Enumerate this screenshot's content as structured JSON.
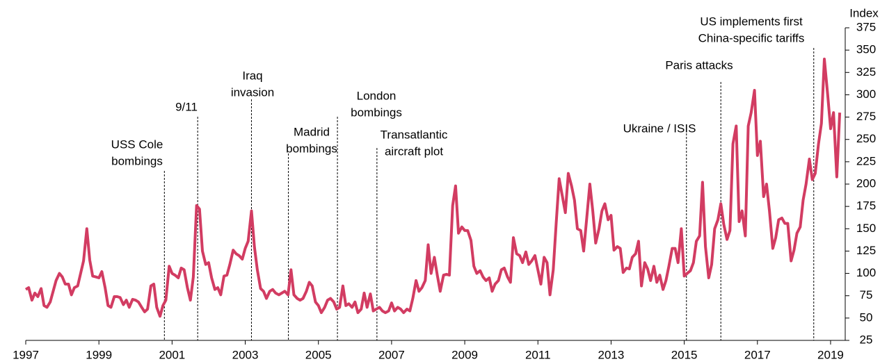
{
  "chart_data": {
    "type": "line",
    "y_axis_label": "Index",
    "color": "#d23c62",
    "xlim": [
      1997,
      2019.4
    ],
    "xticks": [
      1997,
      1999,
      2001,
      2003,
      2005,
      2007,
      2009,
      2011,
      2013,
      2015,
      2017,
      2019
    ],
    "ylim": [
      25,
      375
    ],
    "yticks": [
      25,
      50,
      75,
      100,
      125,
      150,
      175,
      200,
      225,
      250,
      275,
      300,
      325,
      350,
      375
    ],
    "annotations": [
      {
        "lines": [
          "USS Cole",
          "bombings"
        ],
        "x": 2000.79
      },
      {
        "lines": [
          "9/11"
        ],
        "x": 2001.7
      },
      {
        "lines": [
          "Iraq",
          "invasion"
        ],
        "x": 2003.17
      },
      {
        "lines": [
          "Madrid",
          "bombings"
        ],
        "x": 2004.18
      },
      {
        "lines": [
          "London",
          "bombings"
        ],
        "x": 2005.52
      },
      {
        "lines": [
          "Transatlantic",
          "aircraft plot"
        ],
        "x": 2006.6
      },
      {
        "lines": [
          "Ukraine / ISIS"
        ],
        "x": 2015.06
      },
      {
        "lines": [
          "Paris attacks"
        ],
        "x": 2016.0
      },
      {
        "lines": [
          "US implements first",
          "China-specific tariffs"
        ],
        "x": 2018.54
      }
    ],
    "x": [
      1997,
      1997.08,
      1997.17,
      1997.25,
      1997.33,
      1997.42,
      1997.5,
      1997.58,
      1997.67,
      1997.75,
      1997.83,
      1997.92,
      1998,
      1998.08,
      1998.17,
      1998.25,
      1998.33,
      1998.42,
      1998.5,
      1998.58,
      1998.67,
      1998.75,
      1998.83,
      1998.92,
      1999,
      1999.08,
      1999.17,
      1999.25,
      1999.33,
      1999.42,
      1999.5,
      1999.58,
      1999.67,
      1999.75,
      1999.83,
      1999.92,
      2000,
      2000.08,
      2000.17,
      2000.25,
      2000.33,
      2000.42,
      2000.5,
      2000.58,
      2000.67,
      2000.75,
      2000.83,
      2000.92,
      2001,
      2001.08,
      2001.17,
      2001.25,
      2001.33,
      2001.42,
      2001.5,
      2001.58,
      2001.67,
      2001.75,
      2001.83,
      2001.92,
      2002,
      2002.08,
      2002.17,
      2002.25,
      2002.33,
      2002.42,
      2002.5,
      2002.58,
      2002.67,
      2002.75,
      2002.83,
      2002.92,
      2003,
      2003.08,
      2003.17,
      2003.25,
      2003.33,
      2003.42,
      2003.5,
      2003.58,
      2003.67,
      2003.75,
      2003.83,
      2003.92,
      2004,
      2004.08,
      2004.17,
      2004.25,
      2004.33,
      2004.42,
      2004.5,
      2004.58,
      2004.67,
      2004.75,
      2004.83,
      2004.92,
      2005,
      2005.08,
      2005.17,
      2005.25,
      2005.33,
      2005.42,
      2005.5,
      2005.58,
      2005.67,
      2005.75,
      2005.83,
      2005.92,
      2006,
      2006.08,
      2006.17,
      2006.25,
      2006.33,
      2006.42,
      2006.5,
      2006.58,
      2006.67,
      2006.75,
      2006.83,
      2006.92,
      2007,
      2007.08,
      2007.17,
      2007.25,
      2007.33,
      2007.42,
      2007.5,
      2007.58,
      2007.67,
      2007.75,
      2007.83,
      2007.92,
      2008,
      2008.08,
      2008.17,
      2008.25,
      2008.33,
      2008.42,
      2008.5,
      2008.58,
      2008.67,
      2008.75,
      2008.83,
      2008.92,
      2009,
      2009.08,
      2009.17,
      2009.25,
      2009.33,
      2009.42,
      2009.5,
      2009.58,
      2009.67,
      2009.75,
      2009.83,
      2009.92,
      2010,
      2010.08,
      2010.17,
      2010.25,
      2010.33,
      2010.42,
      2010.5,
      2010.58,
      2010.67,
      2010.75,
      2010.83,
      2010.92,
      2011,
      2011.08,
      2011.17,
      2011.25,
      2011.33,
      2011.42,
      2011.5,
      2011.58,
      2011.67,
      2011.75,
      2011.83,
      2011.92,
      2012,
      2012.08,
      2012.17,
      2012.25,
      2012.33,
      2012.42,
      2012.5,
      2012.58,
      2012.67,
      2012.75,
      2012.83,
      2012.92,
      2013,
      2013.08,
      2013.17,
      2013.25,
      2013.33,
      2013.42,
      2013.5,
      2013.58,
      2013.67,
      2013.75,
      2013.83,
      2013.92,
      2014,
      2014.08,
      2014.17,
      2014.25,
      2014.33,
      2014.42,
      2014.5,
      2014.58,
      2014.67,
      2014.75,
      2014.83,
      2014.92,
      2015,
      2015.08,
      2015.17,
      2015.25,
      2015.33,
      2015.42,
      2015.5,
      2015.58,
      2015.67,
      2015.75,
      2015.83,
      2015.92,
      2016,
      2016.08,
      2016.17,
      2016.25,
      2016.33,
      2016.42,
      2016.5,
      2016.58,
      2016.67,
      2016.75,
      2016.83,
      2016.92,
      2017,
      2017.08,
      2017.17,
      2017.25,
      2017.33,
      2017.42,
      2017.5,
      2017.58,
      2017.67,
      2017.75,
      2017.83,
      2017.92,
      2018,
      2018.08,
      2018.17,
      2018.25,
      2018.33,
      2018.42,
      2018.5,
      2018.58,
      2018.67,
      2018.75,
      2018.83,
      2018.92,
      2019,
      2019.08,
      2019.17,
      2019.25
    ],
    "values": [
      82,
      84,
      70,
      78,
      74,
      83,
      64,
      62,
      68,
      80,
      92,
      100,
      96,
      88,
      88,
      76,
      84,
      86,
      100,
      114,
      150,
      115,
      97,
      96,
      95,
      102,
      84,
      64,
      62,
      74,
      74,
      73,
      65,
      70,
      62,
      71,
      70,
      68,
      62,
      57,
      60,
      86,
      88,
      62,
      52,
      64,
      70,
      108,
      100,
      98,
      95,
      106,
      104,
      84,
      70,
      96,
      176,
      172,
      125,
      110,
      112,
      95,
      82,
      84,
      76,
      97,
      98,
      110,
      126,
      122,
      120,
      116,
      128,
      136,
      170,
      130,
      104,
      83,
      80,
      72,
      80,
      82,
      78,
      76,
      78,
      80,
      76,
      104,
      76,
      72,
      70,
      72,
      80,
      90,
      86,
      68,
      64,
      56,
      62,
      70,
      72,
      68,
      60,
      62,
      86,
      64,
      66,
      62,
      68,
      56,
      60,
      78,
      62,
      77,
      58,
      60,
      62,
      58,
      56,
      58,
      67,
      58,
      62,
      60,
      56,
      60,
      58,
      72,
      92,
      80,
      84,
      92,
      132,
      100,
      118,
      98,
      80,
      98,
      99,
      98,
      176,
      198,
      145,
      152,
      148,
      148,
      137,
      108,
      100,
      103,
      96,
      92,
      95,
      80,
      88,
      92,
      104,
      106,
      96,
      90,
      140,
      122,
      120,
      112,
      124,
      110,
      114,
      120,
      104,
      88,
      118,
      112,
      76,
      104,
      156,
      206,
      186,
      168,
      212,
      198,
      182,
      150,
      148,
      125,
      160,
      200,
      170,
      134,
      150,
      170,
      178,
      160,
      165,
      126,
      130,
      128,
      101,
      106,
      105,
      118,
      122,
      136,
      86,
      112,
      105,
      92,
      108,
      90,
      98,
      82,
      92,
      108,
      128,
      128,
      112,
      150,
      97,
      100,
      103,
      112,
      136,
      142,
      202,
      130,
      95,
      110,
      150,
      160,
      178,
      155,
      138,
      148,
      245,
      265,
      158,
      170,
      142,
      265,
      280,
      305,
      232,
      248,
      186,
      200,
      170,
      128,
      140,
      160,
      162,
      156,
      156,
      114,
      126,
      145,
      152,
      182,
      200,
      228,
      205,
      212,
      245,
      268,
      340,
      300,
      262,
      280,
      208,
      280
    ]
  }
}
